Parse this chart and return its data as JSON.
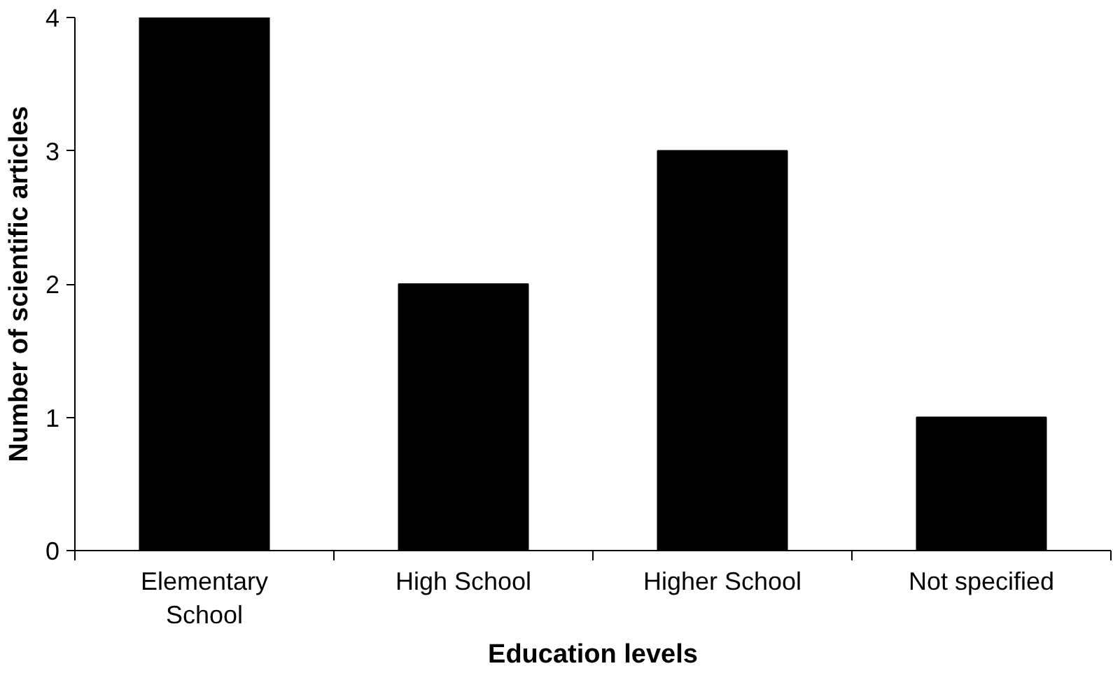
{
  "chart_data": {
    "type": "bar",
    "xlabel": "Education levels",
    "ylabel": "Number of scientific articles",
    "categories": [
      "Elementary School",
      "High School",
      "Higher School",
      "Not specified"
    ],
    "values": [
      4,
      2,
      3,
      1
    ],
    "color": "#000000",
    "ylim": [
      0,
      4
    ],
    "yticks": [
      0,
      1,
      2,
      3,
      4
    ],
    "grid": false
  }
}
